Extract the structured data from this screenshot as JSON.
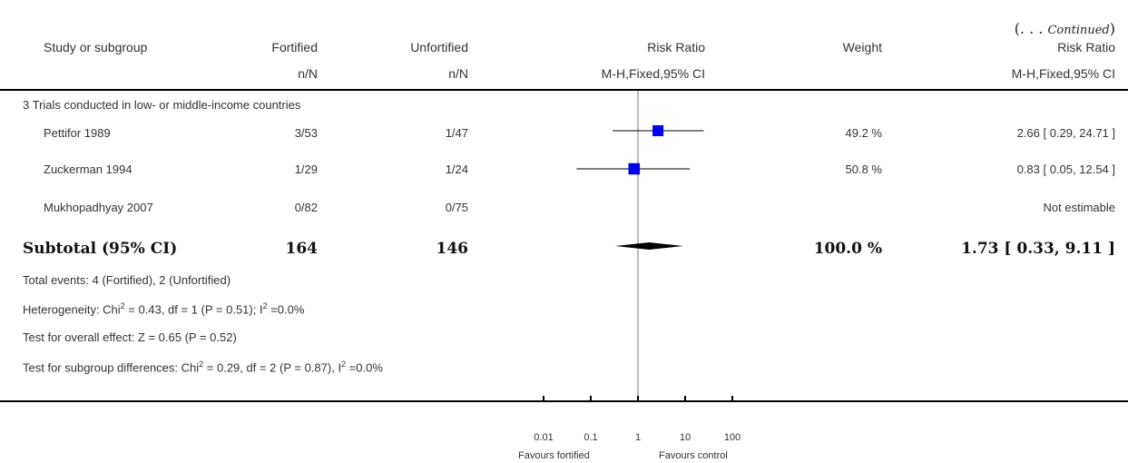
{
  "continued": {
    "open": "(. . . ",
    "text": "Continued",
    "close": ")"
  },
  "headers": {
    "study": "Study or subgroup",
    "fortified": "Fortified",
    "unfortified": "Unfortified",
    "rr": "Risk Ratio",
    "weight": "Weight",
    "rr2": "Risk Ratio",
    "fortified_sub": "n/N",
    "unfortified_sub": "n/N",
    "rr_sub": "M-H,Fixed,95% CI",
    "rr2_sub": "M-H,Fixed,95% CI"
  },
  "subgroup_title": "3 Trials conducted in low- or middle-income countries",
  "rows": [
    {
      "study": "Pettifor 1989",
      "fortified": "3/53",
      "unfortified": "1/47",
      "weight": "49.2 %",
      "ci": "2.66 [ 0.29, 24.71 ]"
    },
    {
      "study": "Zuckerman 1994",
      "fortified": "1/29",
      "unfortified": "1/24",
      "weight": "50.8 %",
      "ci": "0.83 [ 0.05, 12.54 ]"
    },
    {
      "study": "Mukhopadhyay 2007",
      "fortified": "0/82",
      "unfortified": "0/75",
      "weight": "",
      "ci": "Not estimable"
    }
  ],
  "subtotal": {
    "label": "Subtotal (95% CI)",
    "fortified": "164",
    "unfortified": "146",
    "weight": "100.0 %",
    "ci": "1.73 [ 0.33, 9.11 ]"
  },
  "notes": {
    "total_events": "Total events: 4 (Fortified), 2 (Unfortified)",
    "het_a": "Heterogeneity: Chi",
    "het_b": " = 0.43, df = 1 (P = 0.51); I",
    "het_c": " =0.0%",
    "overall": "Test for overall effect: Z = 0.65 (P = 0.52)",
    "sub_a": "Test for subgroup differences: Chi",
    "sub_b": " = 0.29, df = 2 (P = 0.87), I",
    "sub_c": " =0.0%",
    "sup": "2"
  },
  "axis": {
    "ticks": [
      "0.01",
      "0.1",
      "1",
      "10",
      "100"
    ],
    "favours_left": "Favours fortified",
    "favours_right": "Favours control"
  },
  "chart_data": {
    "type": "forest",
    "scale": "log",
    "xlim": [
      0.01,
      100
    ],
    "null_line": 1,
    "studies": [
      {
        "name": "Pettifor 1989",
        "rr": 2.66,
        "lo": 0.29,
        "hi": 24.71,
        "weight": 49.2
      },
      {
        "name": "Zuckerman 1994",
        "rr": 0.83,
        "lo": 0.05,
        "hi": 12.54,
        "weight": 50.8
      },
      {
        "name": "Mukhopadhyay 2007",
        "rr": null,
        "lo": null,
        "hi": null,
        "weight": null
      }
    ],
    "pooled": {
      "rr": 1.73,
      "lo": 0.33,
      "hi": 9.11
    },
    "colors": {
      "marker": "#0000ee",
      "line": "#000000",
      "diamond": "#000000"
    }
  }
}
